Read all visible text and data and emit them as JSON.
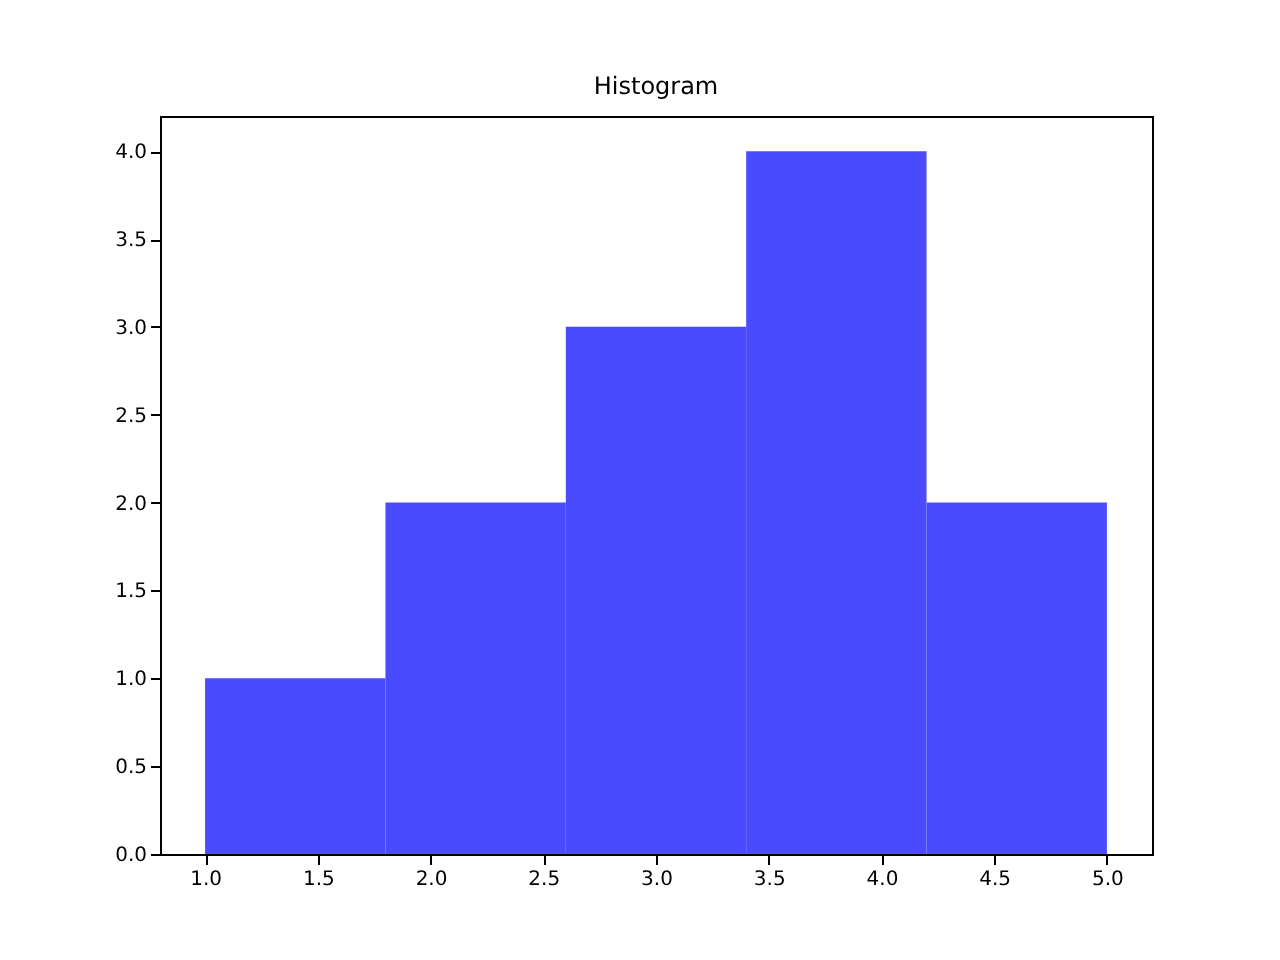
{
  "chart_data": {
    "type": "histogram",
    "title": "Histogram",
    "bins": [
      1.0,
      1.8,
      2.6,
      3.4,
      4.2,
      5.0
    ],
    "values": [
      1,
      2,
      3,
      4,
      2
    ],
    "color": "#4a4aff",
    "xlim": [
      0.8,
      5.2
    ],
    "xticks": [
      {
        "value": 1,
        "label": "1.0"
      },
      {
        "value": 1.5,
        "label": "1.5"
      },
      {
        "value": 2,
        "label": "2.0"
      },
      {
        "value": 2.5,
        "label": "2.5"
      },
      {
        "value": 3,
        "label": "3.0"
      },
      {
        "value": 3.5,
        "label": "3.5"
      },
      {
        "value": 4,
        "label": "4.0"
      },
      {
        "value": 4.5,
        "label": "4.5"
      },
      {
        "value": 5,
        "label": "5.0"
      }
    ],
    "ylim": [
      0,
      4.2
    ],
    "yticks": [
      {
        "value": 0,
        "label": "0.0"
      },
      {
        "value": 0.5,
        "label": "0.5"
      },
      {
        "value": 1,
        "label": "1.0"
      },
      {
        "value": 1.5,
        "label": "1.5"
      },
      {
        "value": 2,
        "label": "2.0"
      },
      {
        "value": 2.5,
        "label": "2.5"
      },
      {
        "value": 3,
        "label": "3.0"
      },
      {
        "value": 3.5,
        "label": "3.5"
      },
      {
        "value": 4,
        "label": "4.0"
      }
    ],
    "grid": false
  }
}
